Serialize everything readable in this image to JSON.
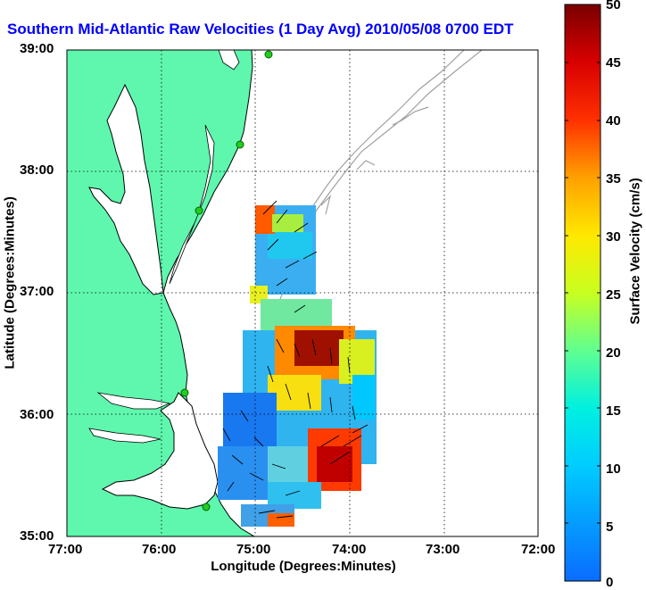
{
  "title": "Southern Mid-Atlantic Raw Velocities (1 Day Avg) 2010/05/08 0700 EDT",
  "axes": {
    "xlabel": "Longitude (Degrees:Minutes)",
    "ylabel": "Latitude (Degrees:Minutes)",
    "xticks": [
      "77:00",
      "76:00",
      "75:00",
      "74:00",
      "73:00",
      "72:00"
    ],
    "yticks": [
      "39:00",
      "38:00",
      "37:00",
      "36:00",
      "35:00"
    ]
  },
  "colorbar": {
    "label": "Surface Velocity (cm/s)",
    "ticks": [
      "0",
      "5",
      "10",
      "15",
      "20",
      "25",
      "30",
      "35",
      "40",
      "45",
      "50"
    ],
    "range": [
      0,
      50
    ]
  },
  "colors": {
    "title": "#0000ff",
    "land": "#5ef7ad",
    "water": "#ffffff",
    "coast": "#000000",
    "isobath": "#a0a0a0",
    "station": "#22cc22",
    "grid": "#000000"
  }
}
